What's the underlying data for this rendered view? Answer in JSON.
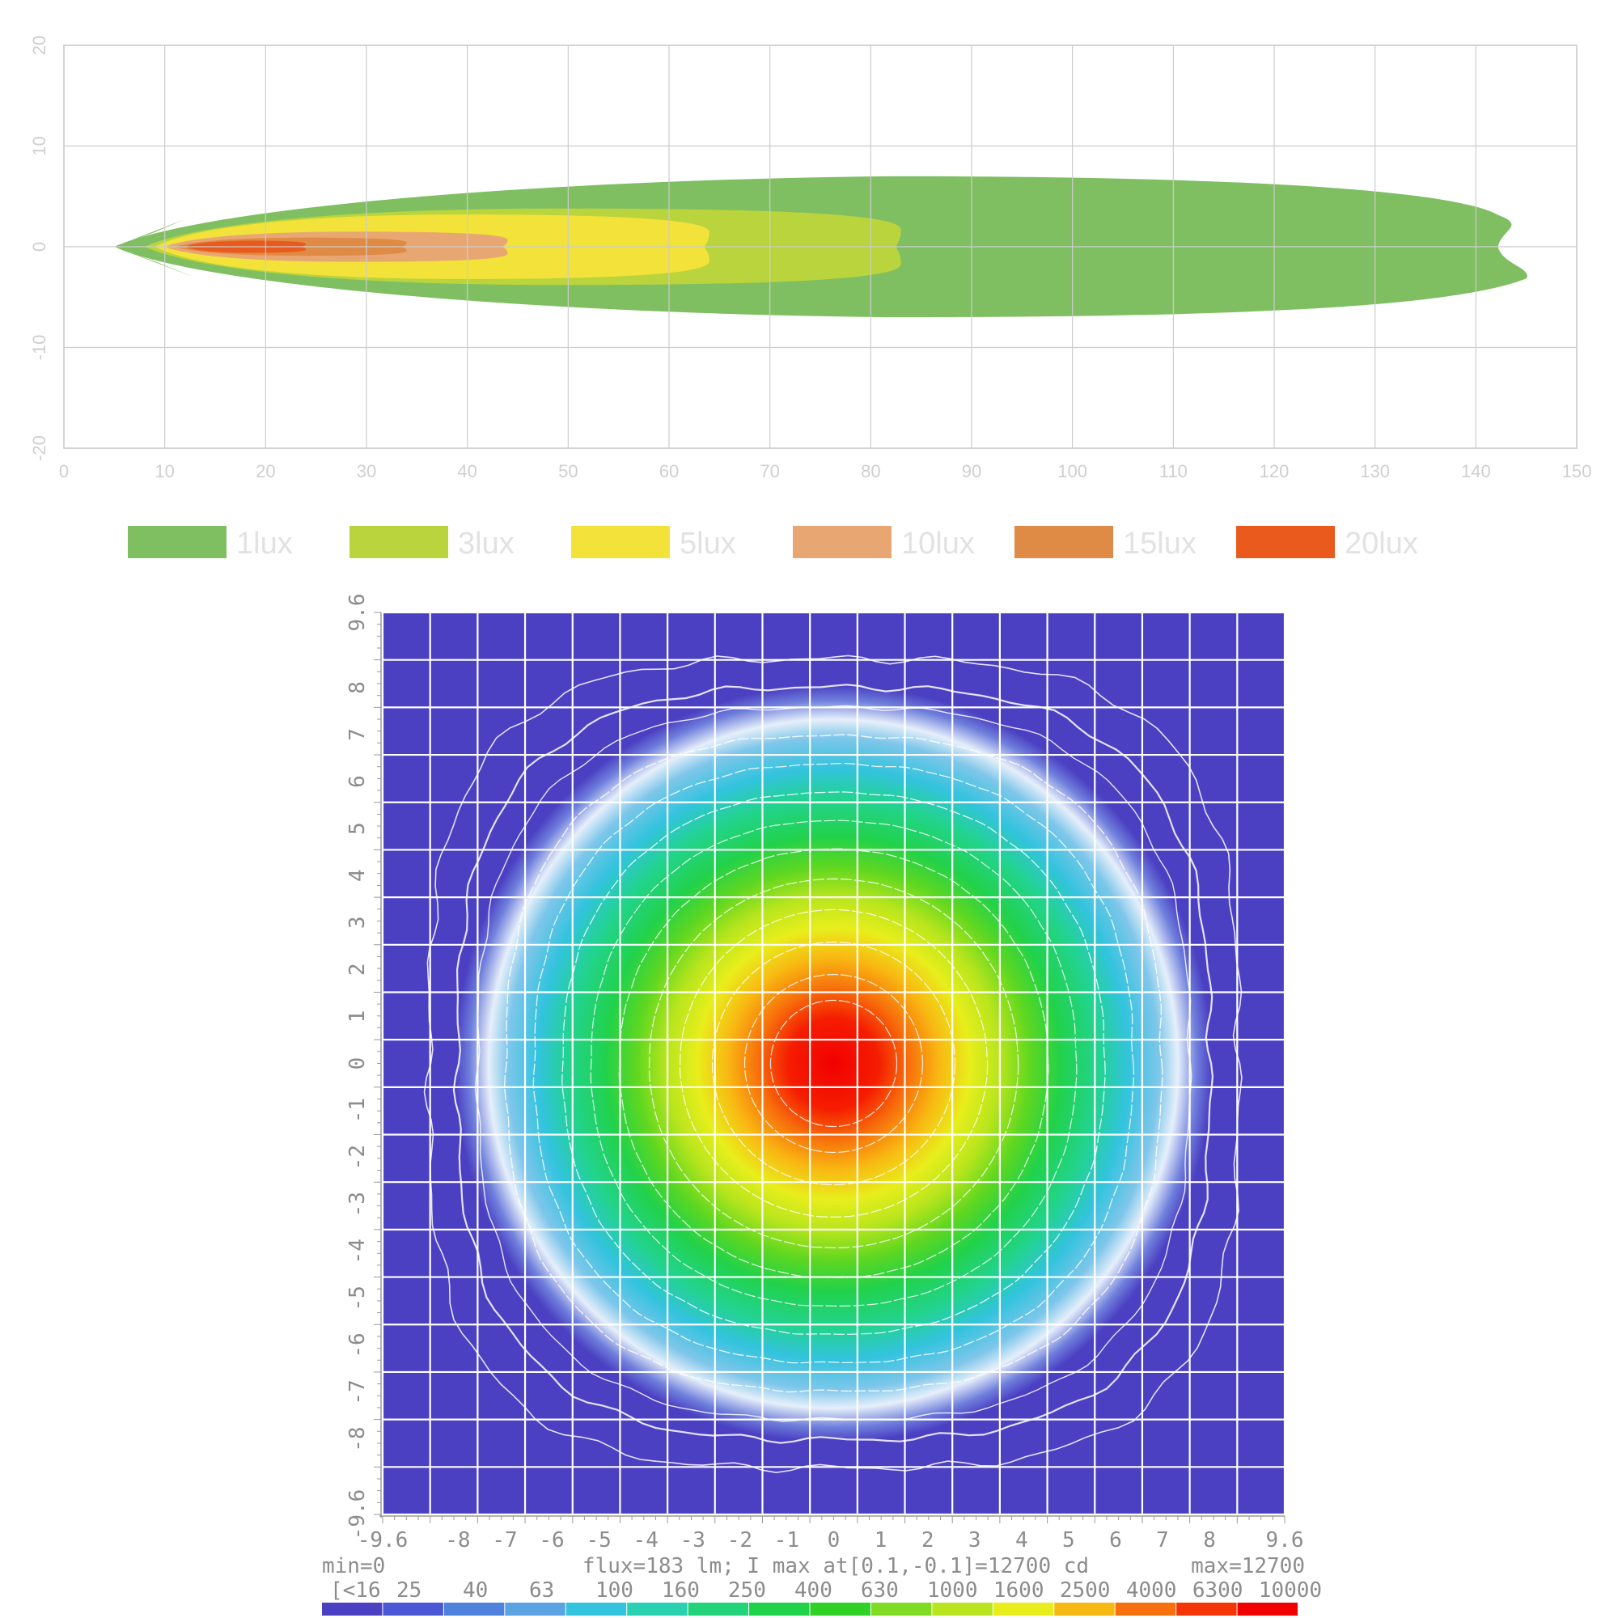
{
  "chart_data": [
    {
      "type": "area",
      "x_ticks": [
        "0",
        "10",
        "20",
        "30",
        "40",
        "50",
        "60",
        "70",
        "80",
        "90",
        "100",
        "110",
        "120",
        "130",
        "140",
        "150"
      ],
      "y_ticks": [
        "20",
        "10",
        "0",
        "-10",
        "-20"
      ],
      "xlim": [
        0,
        150
      ],
      "ylim": [
        -20,
        20
      ],
      "grid": true,
      "legend_position": "bottom",
      "series": [
        {
          "name": "1lux",
          "color": "#7fbf62",
          "reach": [
            5,
            145
          ],
          "half_width": 7.0
        },
        {
          "name": "3lux",
          "color": "#b9d43c",
          "reach": [
            8,
            83
          ],
          "half_width": 3.8
        },
        {
          "name": "5lux",
          "color": "#f2e23a",
          "reach": [
            9,
            64
          ],
          "half_width": 3.2
        },
        {
          "name": "10lux",
          "color": "#e8a772",
          "reach": [
            10,
            44
          ],
          "half_width": 1.5
        },
        {
          "name": "15lux",
          "color": "#e08b45",
          "reach": [
            11,
            34
          ],
          "half_width": 0.9
        },
        {
          "name": "20lux",
          "color": "#e95a1c",
          "reach": [
            12,
            24
          ],
          "half_width": 0.6
        }
      ]
    },
    {
      "type": "heatmap",
      "x_ticks": [
        "-9.6",
        "-8",
        "-7",
        "-6",
        "-5",
        "-4",
        "-3",
        "-2",
        "-1",
        "0",
        "1",
        "2",
        "3",
        "4",
        "5",
        "6",
        "7",
        "8",
        "9.6"
      ],
      "y_ticks": [
        "9.6",
        "8",
        "7",
        "6",
        "5",
        "4",
        "3",
        "2",
        "1",
        "0",
        "-1",
        "-2",
        "-3",
        "-4",
        "-5",
        "-6",
        "-7",
        "-8",
        "-9.6"
      ],
      "xlim": [
        -9.6,
        9.6
      ],
      "ylim": [
        -9.6,
        9.6
      ],
      "grid": true,
      "max_at": [
        0.1,
        -0.1
      ],
      "footer": {
        "min": "min=0",
        "info": "flux=183 lm; I max at[0.1,-0.1]=12700 cd",
        "max": "max=12700"
      },
      "scale_labels": [
        "[<16",
        "25",
        "40",
        "63",
        "100",
        "160",
        "250",
        "400",
        "630",
        "1000",
        "1600",
        "2500",
        "4000",
        "6300",
        "10000"
      ],
      "scale_colors": [
        "#4b40c2",
        "#4a58d6",
        "#4f82dc",
        "#5aa4e3",
        "#33c3de",
        "#2ad1b0",
        "#22d37a",
        "#1fd24a",
        "#2fd125",
        "#7fdc22",
        "#b8e51d",
        "#e8ee1c",
        "#f8b812",
        "#f7700c",
        "#f53507",
        "#f20000"
      ]
    }
  ]
}
